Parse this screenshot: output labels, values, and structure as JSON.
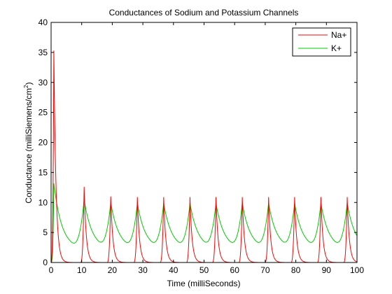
{
  "chart_data": {
    "type": "line",
    "title": "Conductances of Sodium and Potassium Channels",
    "xlabel": "Time (milliSeconds)",
    "ylabel_main": "Conductance (milliSiemens/cm",
    "ylabel_sup": "2",
    "ylabel_end": ")",
    "xlim": [
      0,
      100
    ],
    "ylim": [
      0,
      40
    ],
    "xticks": [
      0,
      10,
      20,
      30,
      40,
      50,
      60,
      70,
      80,
      90,
      100
    ],
    "yticks": [
      0,
      5,
      10,
      15,
      20,
      25,
      30,
      35,
      40
    ],
    "legend": {
      "placement": "top-right"
    },
    "spike_times": [
      0.9,
      10.8,
      19.5,
      28.2,
      36.8,
      45.4,
      53.9,
      62.5,
      71.1,
      79.6,
      88.2,
      96.8
    ],
    "series": [
      {
        "name": "Na+",
        "color": "#ff0000",
        "peaks": [
          35.3,
          12.6,
          11.0,
          10.9,
          10.9,
          10.9,
          10.9,
          10.9,
          10.9,
          10.9,
          10.9,
          10.9
        ],
        "rise_ms": 0.35,
        "decay_ms": 0.7
      },
      {
        "name": "K+",
        "color": "#00cc00",
        "peaks": [
          13.2,
          10.5,
          10.0,
          9.9,
          9.9,
          9.9,
          9.9,
          9.9,
          9.9,
          9.9,
          9.9,
          9.9
        ],
        "baseline": 2.2,
        "start_value": 0.0,
        "rise_ms": 1.3,
        "decay_ms": 2.6
      }
    ]
  }
}
